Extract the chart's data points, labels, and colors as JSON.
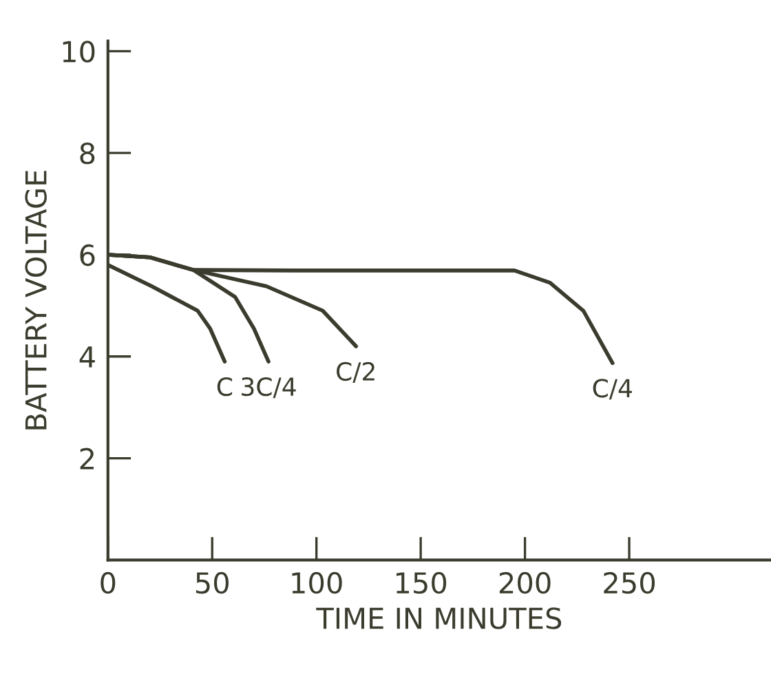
{
  "chart_data": {
    "type": "line",
    "xlabel": "TIME IN MINUTES",
    "ylabel": "BATTERY VOLTAGE",
    "xlim": [
      0,
      318
    ],
    "ylim": [
      0,
      10.2
    ],
    "xticks": [
      0,
      50,
      100,
      150,
      200,
      250
    ],
    "yticks": [
      2,
      4,
      6,
      8,
      10
    ],
    "grid": false,
    "legend": false,
    "marker": "none",
    "line_style": "solid",
    "series": [
      {
        "name": "C",
        "color": "#3b3b2e",
        "x": [
          0,
          21,
          43,
          49,
          56
        ],
        "values": [
          5.8,
          5.38,
          4.9,
          4.55,
          3.9
        ]
      },
      {
        "name": "3C/4",
        "color": "#3b3b2e",
        "x": [
          0,
          20,
          41,
          61,
          70,
          77
        ],
        "values": [
          6.0,
          5.95,
          5.7,
          5.17,
          4.55,
          3.9
        ]
      },
      {
        "name": "C/2",
        "color": "#3b3b2e",
        "x": [
          0,
          20,
          41,
          76,
          103,
          119
        ],
        "values": [
          6.0,
          5.95,
          5.7,
          5.38,
          4.9,
          4.2
        ]
      },
      {
        "name": "C/4",
        "color": "#3b3b2e",
        "x": [
          0,
          20,
          41,
          89,
          195,
          212,
          228,
          242
        ],
        "values": [
          6.0,
          5.95,
          5.7,
          5.69,
          5.69,
          5.45,
          4.9,
          3.87
        ]
      }
    ]
  }
}
